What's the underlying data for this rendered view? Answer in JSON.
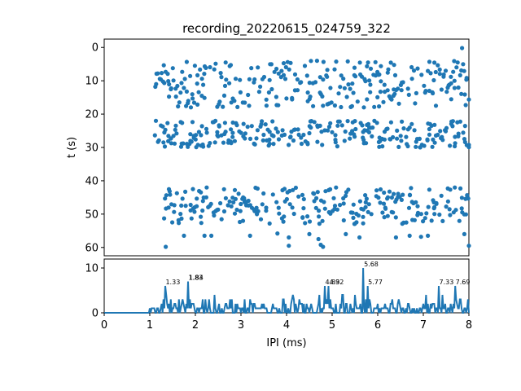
{
  "chart_data": [
    {
      "type": "scatter",
      "title": "recording_20220615_024759_322",
      "xlabel": "",
      "ylabel": "t (s)",
      "xlim": [
        0,
        8
      ],
      "ylim": [
        62.5,
        -2.5
      ],
      "y_inverted": true,
      "yticks": [
        0,
        10,
        20,
        30,
        40,
        50,
        60
      ],
      "color": "#1f77b4",
      "bursts": [
        {
          "t_start": 4,
          "t_end": 18,
          "x_start": 1.1,
          "x_end": 8.0
        },
        {
          "t_start": 22,
          "t_end": 30,
          "x_start": 1.1,
          "x_end": 8.0
        },
        {
          "t_start": 42,
          "t_end": 53,
          "x_start": 1.3,
          "x_end": 8.0
        }
      ],
      "sparse_points": [
        {
          "x": 1.35,
          "y": 59.8
        },
        {
          "x": 1.75,
          "y": 56.5
        },
        {
          "x": 2.2,
          "y": 56.5
        },
        {
          "x": 2.35,
          "y": 56.5
        },
        {
          "x": 3.2,
          "y": 56.5
        },
        {
          "x": 3.8,
          "y": 55.8
        },
        {
          "x": 4.05,
          "y": 57.0
        },
        {
          "x": 4.05,
          "y": 59.5
        },
        {
          "x": 4.5,
          "y": 56.0
        },
        {
          "x": 4.7,
          "y": 57.5
        },
        {
          "x": 4.75,
          "y": 59.2
        },
        {
          "x": 4.8,
          "y": 59.8
        },
        {
          "x": 5.3,
          "y": 56.0
        },
        {
          "x": 5.6,
          "y": 57.0
        },
        {
          "x": 6.4,
          "y": 57.0
        },
        {
          "x": 6.7,
          "y": 56.5
        },
        {
          "x": 6.95,
          "y": 56.8
        },
        {
          "x": 7.1,
          "y": 56.5
        },
        {
          "x": 7.9,
          "y": 56.0
        },
        {
          "x": 8.0,
          "y": 59.5
        },
        {
          "x": 7.85,
          "y": 0.2
        }
      ]
    },
    {
      "type": "line",
      "xlabel": "IPI (ms)",
      "ylabel": "",
      "xlim": [
        0,
        8
      ],
      "ylim": [
        0,
        12
      ],
      "xticks": [
        0,
        1,
        2,
        3,
        4,
        5,
        6,
        7,
        8
      ],
      "yticks": [
        0,
        10
      ],
      "color": "#1f77b4",
      "baseline_until": 1.0,
      "peaks": [
        {
          "x": 1.33,
          "y": 6,
          "label": "1.33"
        },
        {
          "x": 1.83,
          "y": 7,
          "label": "1.83"
        },
        {
          "x": 1.84,
          "y": 7,
          "label": "1.84"
        },
        {
          "x": 4.83,
          "y": 6,
          "label": "4.83"
        },
        {
          "x": 4.92,
          "y": 6,
          "label": "4.92"
        },
        {
          "x": 5.68,
          "y": 10,
          "label": "5.68"
        },
        {
          "x": 5.77,
          "y": 6,
          "label": "5.77"
        },
        {
          "x": 7.33,
          "y": 6,
          "label": "7.33"
        },
        {
          "x": 7.69,
          "y": 6,
          "label": "7.69"
        }
      ]
    }
  ]
}
